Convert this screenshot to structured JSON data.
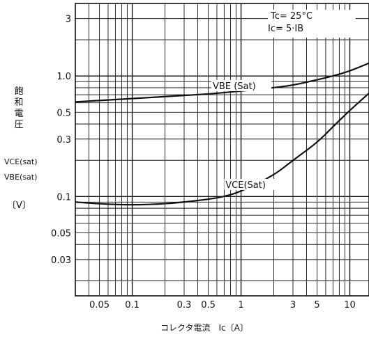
{
  "chart_data": {
    "type": "line",
    "x_scale": "log",
    "y_scale": "log",
    "xlim": [
      0.03,
      15
    ],
    "ylim": [
      0.015,
      4
    ],
    "grid": true,
    "x_ticks": [
      {
        "value": 0.05,
        "label": "0.05"
      },
      {
        "value": 0.1,
        "label": "0.1"
      },
      {
        "value": 0.3,
        "label": "0.3"
      },
      {
        "value": 0.5,
        "label": "0.5"
      },
      {
        "value": 1,
        "label": "1"
      },
      {
        "value": 3,
        "label": "3"
      },
      {
        "value": 5,
        "label": "5"
      },
      {
        "value": 10,
        "label": "10"
      }
    ],
    "y_ticks": [
      {
        "value": 3,
        "label": "3"
      },
      {
        "value": 1,
        "label": "1.0"
      },
      {
        "value": 0.5,
        "label": "0.5"
      },
      {
        "value": 0.3,
        "label": "0.3"
      },
      {
        "value": 0.1,
        "label": "0.1"
      },
      {
        "value": 0.05,
        "label": "0.05"
      },
      {
        "value": 0.03,
        "label": "0.03"
      }
    ],
    "xlabel": "コレクタ電流　Ic〔A〕",
    "ylabel_jp": "飽和電圧",
    "ylabel_lines": [
      "VCE(sat)",
      "VBE(sat)",
      "〔V〕"
    ],
    "conditions": [
      "Tc= 25°C",
      "Ic= 5·IB"
    ],
    "series": [
      {
        "name": "VBE (Sat)",
        "x": [
          0.03,
          0.1,
          0.3,
          0.5,
          1,
          2,
          3,
          5,
          7,
          10,
          15
        ],
        "y": [
          0.61,
          0.65,
          0.69,
          0.71,
          0.75,
          0.8,
          0.84,
          0.93,
          1.0,
          1.1,
          1.28
        ]
      },
      {
        "name": "VCE(Sat)",
        "x": [
          0.03,
          0.05,
          0.1,
          0.2,
          0.3,
          0.5,
          0.7,
          1,
          2,
          3,
          5,
          7,
          10,
          15
        ],
        "y": [
          0.09,
          0.087,
          0.085,
          0.087,
          0.09,
          0.095,
          0.1,
          0.11,
          0.15,
          0.2,
          0.28,
          0.38,
          0.52,
          0.72
        ]
      }
    ]
  }
}
